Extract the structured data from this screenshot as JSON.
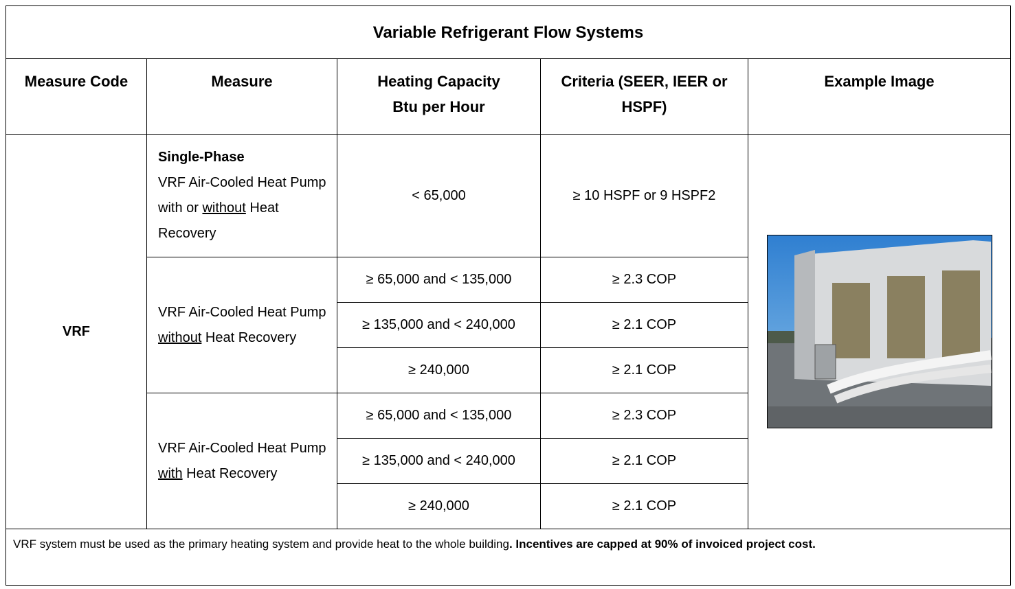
{
  "title": "Variable Refrigerant Flow Systems",
  "headers": [
    [
      "Measure Code"
    ],
    [
      "Measure"
    ],
    [
      "Heating Capacity",
      "Btu per Hour"
    ],
    [
      "Criteria (SEER, IEER or",
      "HSPF)"
    ],
    [
      "Example Image"
    ]
  ],
  "measure_code": "VRF",
  "measures": [
    {
      "heading": "Single-Phase",
      "text": [
        "VRF Air-Cooled Heat Pump with or ",
        "without",
        " Heat Recovery"
      ],
      "rows": [
        {
          "capacity": "< 65,000",
          "criteria": "≥ 10 HSPF or 9 HSPF2"
        }
      ]
    },
    {
      "text": [
        "VRF Air-Cooled Heat Pump ",
        "without",
        " Heat Recovery"
      ],
      "rows": [
        {
          "capacity": "≥ 65,000 and < 135,000",
          "criteria": "≥ 2.3 COP"
        },
        {
          "capacity": "≥ 135,000 and < 240,000",
          "criteria": "≥ 2.1 COP"
        },
        {
          "capacity": "≥ 240,000",
          "criteria": "≥ 2.1 COP"
        }
      ]
    },
    {
      "text": [
        "VRF Air-Cooled Heat Pump ",
        "with",
        " Heat Recovery"
      ],
      "rows": [
        {
          "capacity": "≥ 65,000 and < 135,000",
          "criteria": "≥ 2.3 COP"
        },
        {
          "capacity": "≥ 135,000 and < 240,000",
          "criteria": "≥ 2.1 COP"
        },
        {
          "capacity": "≥ 240,000",
          "criteria": "≥ 2.1 COP"
        }
      ]
    }
  ],
  "footer": {
    "text": "VRF system must be used as the primary heating system and provide heat to the whole building",
    "bold": ". Incentives are capped at 90% of invoiced project cost."
  }
}
